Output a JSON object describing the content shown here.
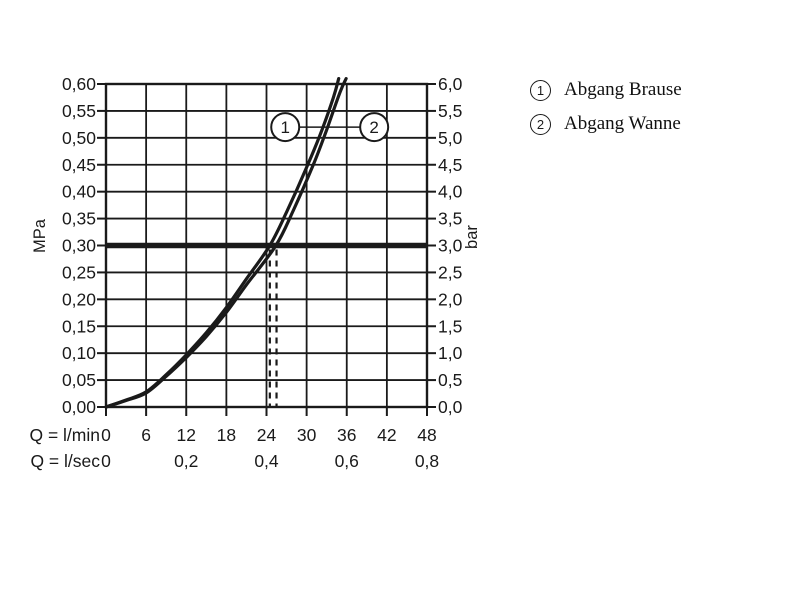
{
  "legend": {
    "items": [
      {
        "symbol": "1",
        "label": "Abgang Brause"
      },
      {
        "symbol": "2",
        "label": "Abgang Wanne"
      }
    ]
  },
  "chart_data": {
    "type": "line",
    "title": "",
    "grid": true,
    "colors": {
      "line": "#1a1a1a",
      "background": "#ffffff"
    },
    "x_axis": {
      "row1_label": "Q = l/min",
      "row1_ticks": [
        "0",
        "6",
        "12",
        "18",
        "24",
        "30",
        "36",
        "42",
        "48"
      ],
      "row2_label": "Q = l/sec",
      "row2_ticks": [
        "0",
        "0,2",
        "0,4",
        "0,6",
        "0,8"
      ],
      "range_lmin": [
        0,
        48
      ],
      "gridline_step_lmin": 6
    },
    "y_axis_left": {
      "label": "MPa",
      "ticks_bottom_to_top": [
        "0,00",
        "0,05",
        "0,10",
        "0,15",
        "0,20",
        "0,25",
        "0,30",
        "0,35",
        "0,40",
        "0,45",
        "0,50",
        "0,55",
        "0,60"
      ],
      "range": [
        0,
        0.6
      ]
    },
    "y_axis_right": {
      "label": "bar",
      "ticks_bottom_to_top": [
        "0,0",
        "0,5",
        "1,0",
        "1,5",
        "2,0",
        "2,5",
        "3,0",
        "3,5",
        "4,0",
        "4,5",
        "5,0",
        "5,5",
        "6,0"
      ],
      "range": [
        0,
        6
      ]
    },
    "series": [
      {
        "name": "Abgang Brause",
        "marker": "1",
        "points_q_bar": [
          [
            0,
            0
          ],
          [
            3,
            0.13
          ],
          [
            6,
            0.28
          ],
          [
            9,
            0.6
          ],
          [
            12,
            0.97
          ],
          [
            15,
            1.38
          ],
          [
            18,
            1.85
          ],
          [
            21,
            2.38
          ],
          [
            24.5,
            3.0
          ],
          [
            27,
            3.62
          ],
          [
            30,
            4.45
          ],
          [
            32,
            5.05
          ],
          [
            34,
            5.75
          ],
          [
            34.8,
            6.1
          ]
        ]
      },
      {
        "name": "Abgang Wanne",
        "marker": "2",
        "points_q_bar": [
          [
            0,
            0
          ],
          [
            3,
            0.12
          ],
          [
            6,
            0.26
          ],
          [
            9,
            0.57
          ],
          [
            12,
            0.92
          ],
          [
            15,
            1.31
          ],
          [
            18,
            1.76
          ],
          [
            21,
            2.27
          ],
          [
            25.4,
            3.0
          ],
          [
            28,
            3.65
          ],
          [
            31,
            4.5
          ],
          [
            33,
            5.15
          ],
          [
            35,
            5.85
          ],
          [
            35.9,
            6.1
          ]
        ]
      }
    ],
    "reference_line": {
      "bar": 3.0
    },
    "dashed_markers_q": [
      24.5,
      25.5
    ],
    "annotations": [
      {
        "text": "1",
        "q": 26.8,
        "bar": 5.2
      },
      {
        "text": "2",
        "q": 40.1,
        "bar": 5.2
      }
    ]
  }
}
